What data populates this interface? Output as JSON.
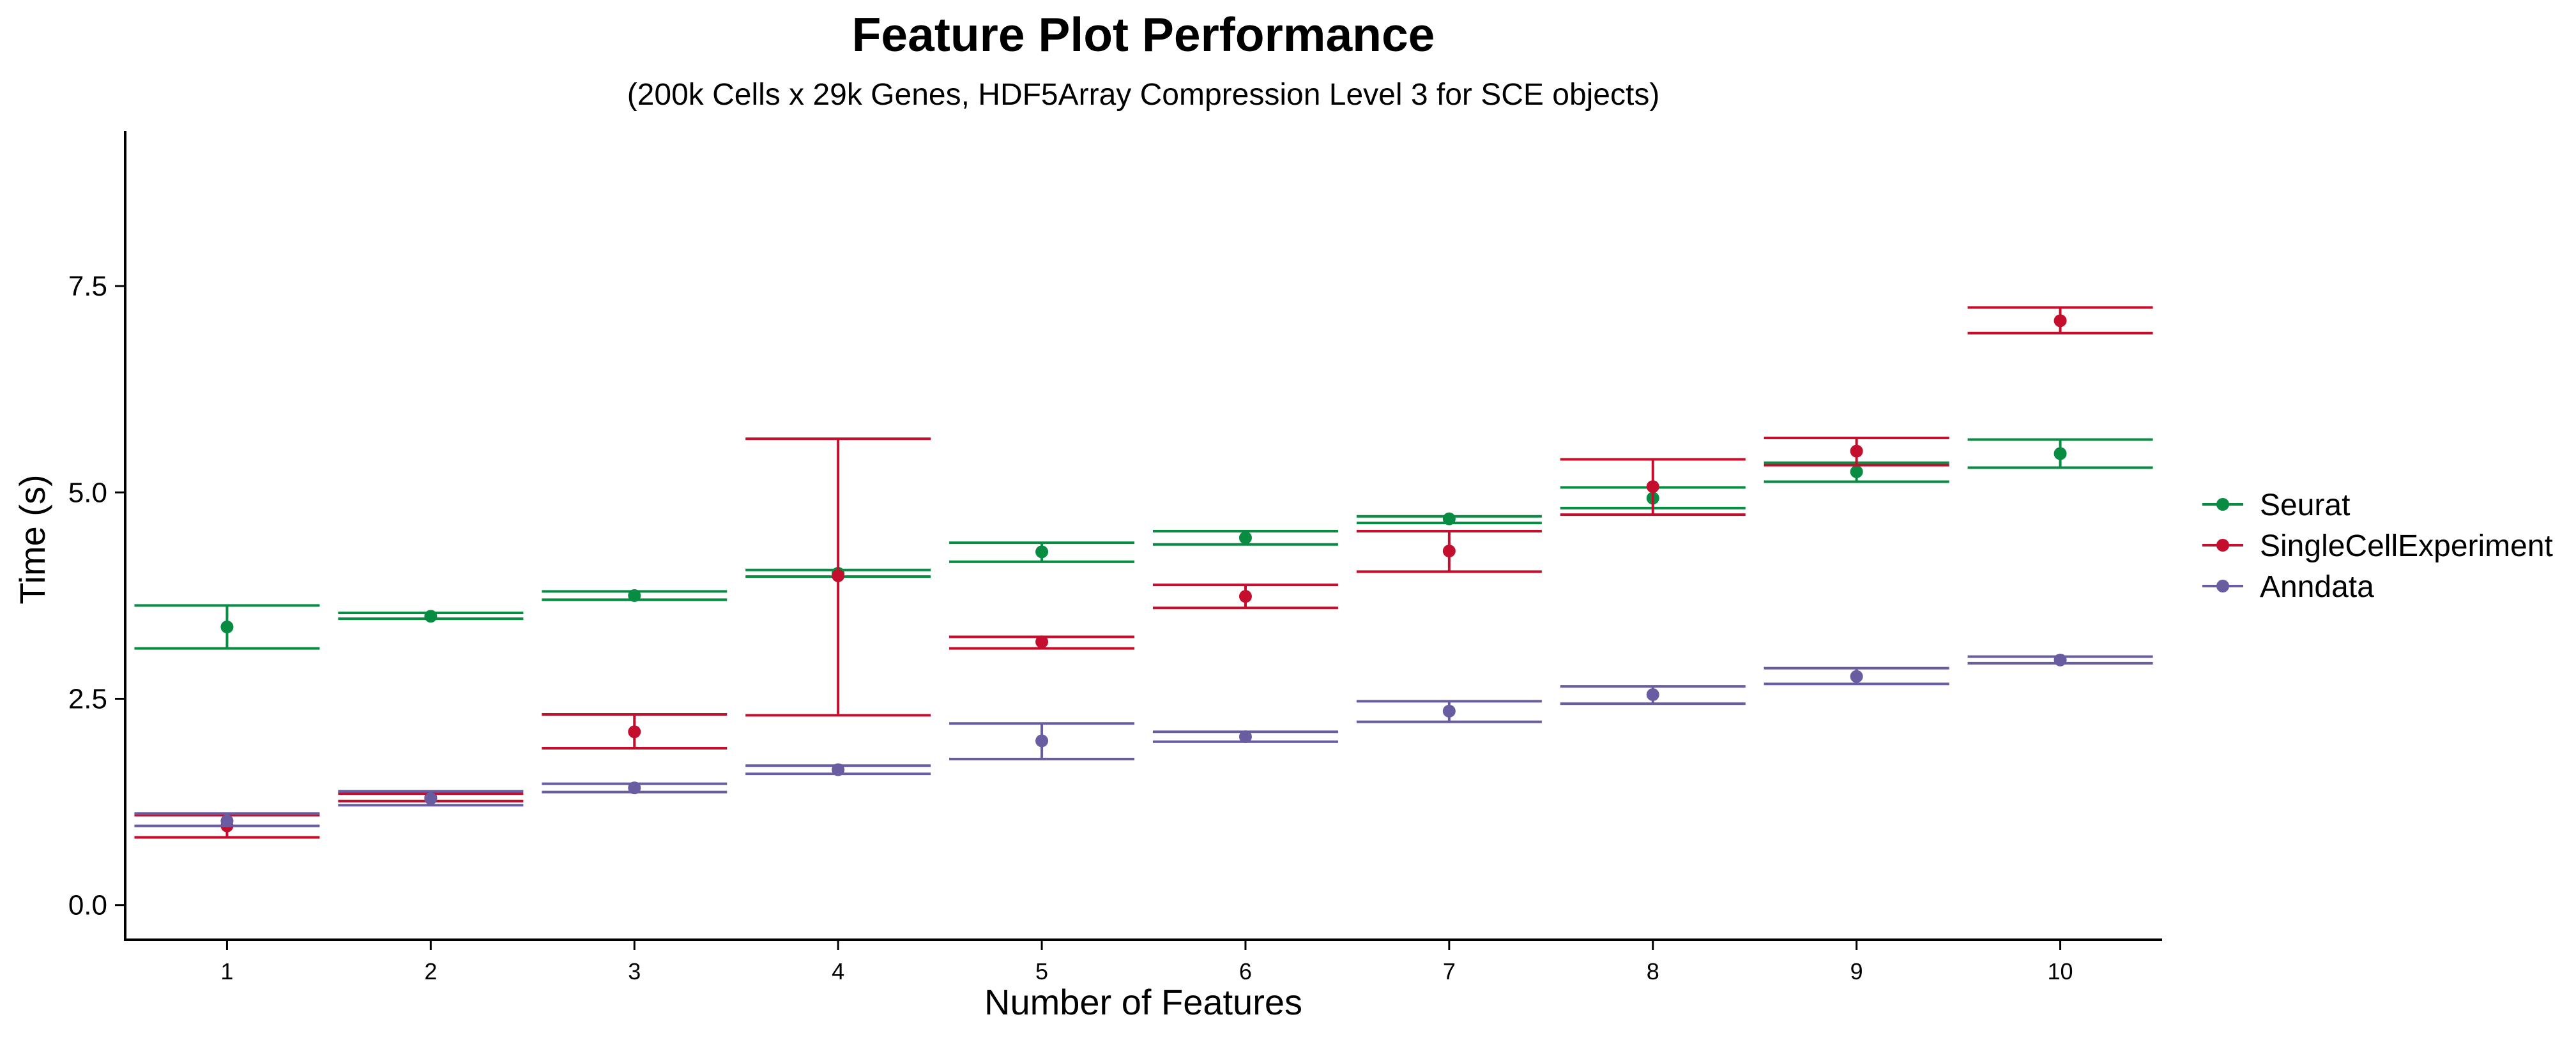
{
  "chart_data": {
    "type": "scatter",
    "title": "Feature Plot Performance",
    "subtitle": "(200k Cells x 29k Genes, HDF5Array Compression Level 3 for SCE objects)",
    "xlabel": "Number of Features",
    "ylabel": "Time (s)",
    "categories": [
      "1",
      "2",
      "3",
      "4",
      "5",
      "6",
      "7",
      "8",
      "9",
      "10"
    ],
    "ylim": [
      -0.42,
      9.38
    ],
    "yticks": [
      "0.0",
      "2.5",
      "5.0",
      "7.5"
    ],
    "grid": false,
    "legend_position": "right",
    "series": [
      {
        "name": "Seurat",
        "color": "#078c42",
        "values": [
          3.37,
          3.5,
          3.75,
          4.02,
          4.28,
          4.45,
          4.68,
          4.93,
          5.25,
          5.47
        ],
        "ymin": [
          3.11,
          3.47,
          3.7,
          3.98,
          4.16,
          4.37,
          4.63,
          4.81,
          5.13,
          5.3
        ],
        "ymax": [
          3.63,
          3.54,
          3.8,
          4.06,
          4.39,
          4.53,
          4.71,
          5.06,
          5.36,
          5.64
        ]
      },
      {
        "name": "SingleCellExperiment",
        "color": "#c40e2d",
        "values": [
          0.96,
          1.3,
          2.1,
          3.99,
          3.19,
          3.74,
          4.29,
          5.07,
          5.5,
          7.08
        ],
        "ymin": [
          0.82,
          1.26,
          1.9,
          2.3,
          3.11,
          3.6,
          4.04,
          4.73,
          5.33,
          6.93
        ],
        "ymax": [
          1.09,
          1.35,
          2.31,
          5.65,
          3.25,
          3.88,
          4.53,
          5.4,
          5.66,
          7.24
        ]
      },
      {
        "name": "Anndata",
        "color": "#6a5ca0",
        "values": [
          1.02,
          1.29,
          1.42,
          1.64,
          1.99,
          2.04,
          2.35,
          2.55,
          2.77,
          2.97
        ],
        "ymin": [
          0.96,
          1.21,
          1.37,
          1.59,
          1.77,
          1.98,
          2.22,
          2.44,
          2.68,
          2.93
        ],
        "ymax": [
          1.11,
          1.38,
          1.47,
          1.69,
          2.2,
          2.1,
          2.47,
          2.65,
          2.87,
          3.01
        ]
      }
    ]
  }
}
